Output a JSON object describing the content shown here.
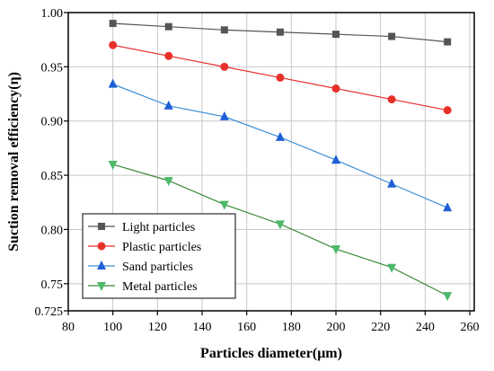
{
  "chart_data": {
    "type": "line",
    "xlabel": "Particles diameter(μm)",
    "ylabel": "Suction removal efficiency(η)",
    "xlim": [
      80,
      262
    ],
    "ylim": [
      0.725,
      1.0
    ],
    "x_ticks": [
      80,
      100,
      120,
      140,
      160,
      180,
      200,
      220,
      240,
      260
    ],
    "x_tick_labels": [
      "80",
      "100",
      "120",
      "140",
      "160",
      "180",
      "200",
      "220",
      "240",
      "260"
    ],
    "y_ticks": [
      0.725,
      0.75,
      0.8,
      0.85,
      0.9,
      0.95,
      1.0
    ],
    "y_tick_labels": [
      "0.725",
      "0.75",
      "0.80",
      "0.85",
      "0.90",
      "0.95",
      "1.00"
    ],
    "grid": true,
    "legend_position": "bottom-left",
    "x": [
      100,
      125,
      150,
      175,
      200,
      225,
      250
    ],
    "series": [
      {
        "name": "Light particles",
        "marker": "square",
        "color": "#555555",
        "marker_color": "#555555",
        "values": [
          0.99,
          0.987,
          0.984,
          0.982,
          0.98,
          0.978,
          0.973
        ]
      },
      {
        "name": "Plastic particles",
        "marker": "circle",
        "color": "#e8302a",
        "marker_color": "#e8302a",
        "values": [
          0.97,
          0.96,
          0.95,
          0.94,
          0.93,
          0.92,
          0.91
        ]
      },
      {
        "name": "Sand particles",
        "marker": "triangle-up",
        "color": "#3a8fd8",
        "marker_color": "#1f5fd6",
        "values": [
          0.934,
          0.914,
          0.904,
          0.885,
          0.864,
          0.842,
          0.82
        ]
      },
      {
        "name": "Metal particles",
        "marker": "triangle-down",
        "color": "#3a8a3a",
        "marker_color": "#4cb86a",
        "values": [
          0.86,
          0.845,
          0.823,
          0.805,
          0.782,
          0.765,
          0.739
        ]
      }
    ]
  }
}
